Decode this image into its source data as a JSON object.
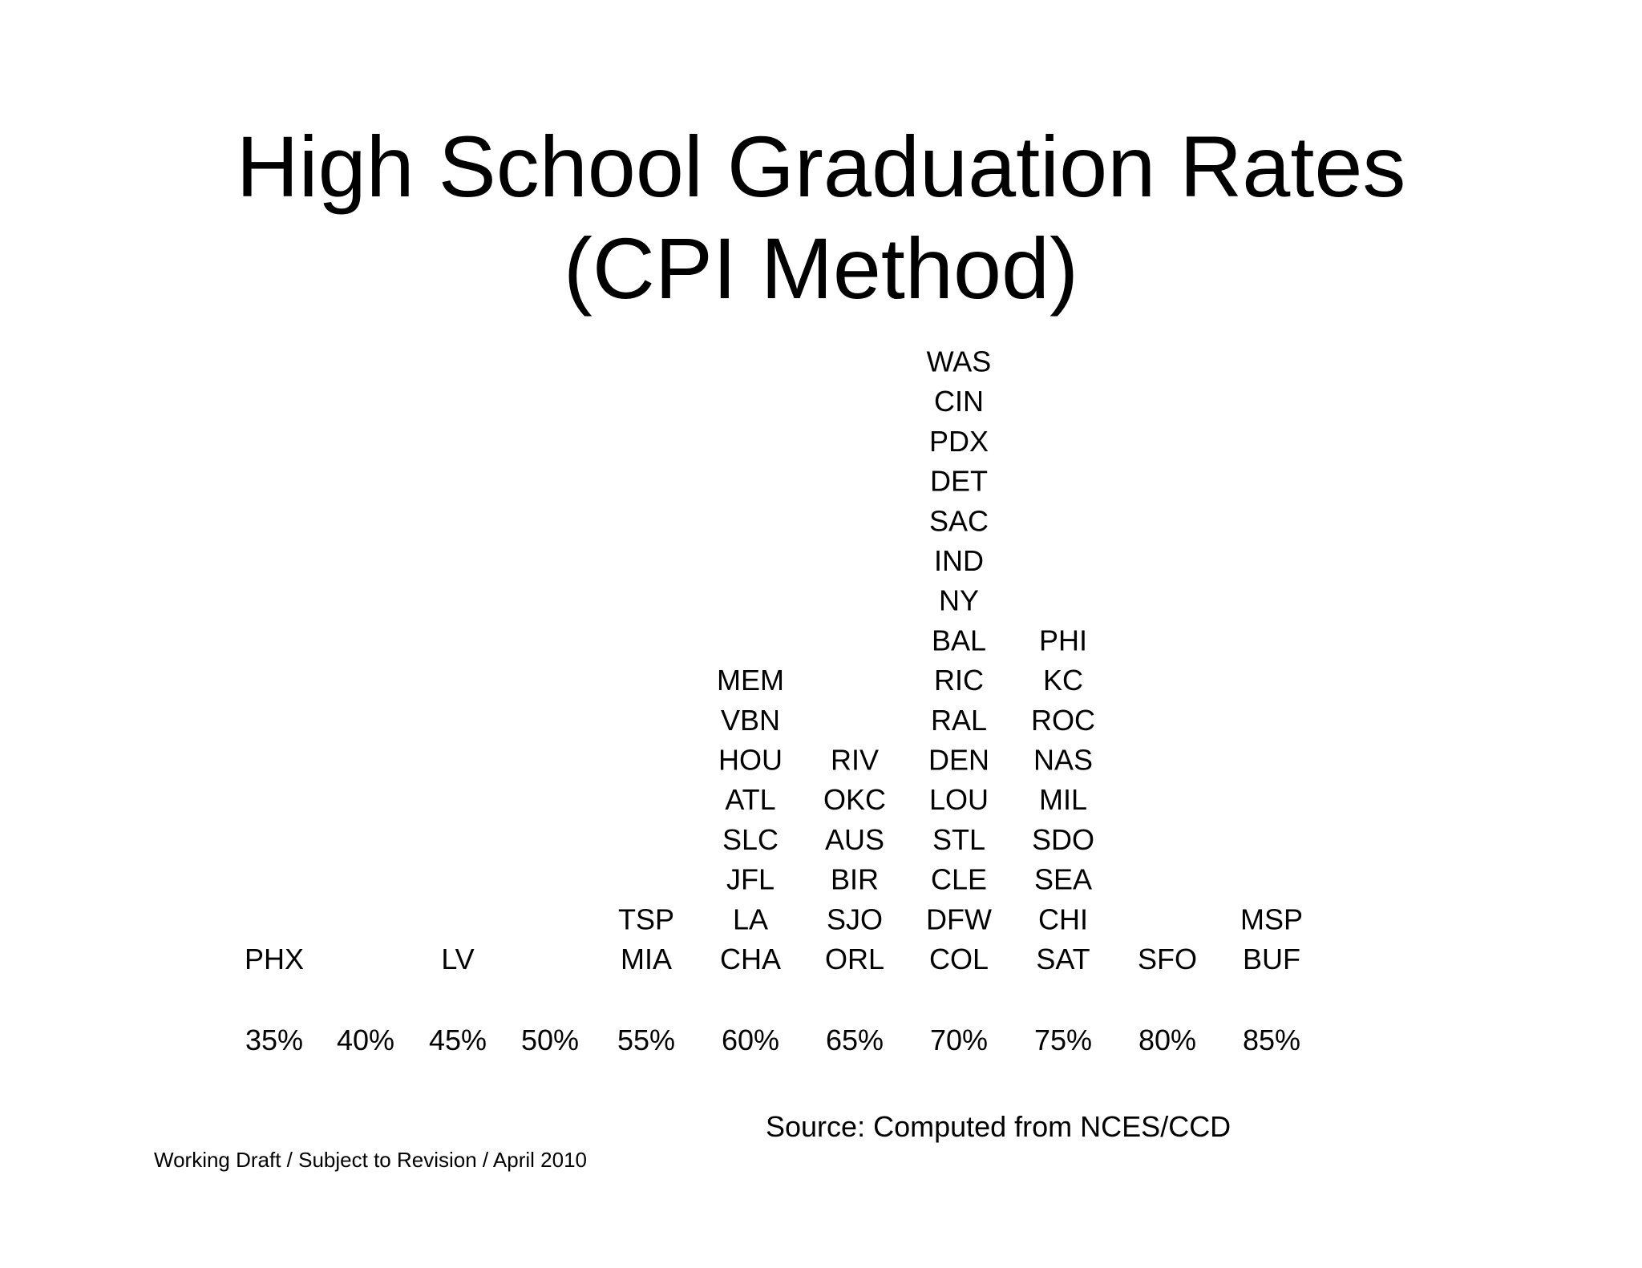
{
  "slide": {
    "title_line1": "High School Graduation Rates",
    "title_line2": "(CPI Method)",
    "source": "Source: Computed from NCES/CCD",
    "footer": "Working Draft / Subject to Revision / April 2010"
  },
  "chart_data": {
    "type": "dot-plot",
    "title": "High School Graduation Rates (CPI Method)",
    "xlabel": "",
    "ylabel": "",
    "x_tick_labels": [
      "35%",
      "40%",
      "45%",
      "50%",
      "55%",
      "60%",
      "65%",
      "70%",
      "75%",
      "80%",
      "85%"
    ],
    "columns": [
      {
        "x": "35%",
        "labels": [
          "PHX"
        ]
      },
      {
        "x": "40%",
        "labels": []
      },
      {
        "x": "45%",
        "labels": [
          "LV"
        ]
      },
      {
        "x": "50%",
        "labels": []
      },
      {
        "x": "55%",
        "labels": [
          "MIA",
          "TSP"
        ]
      },
      {
        "x": "60%",
        "labels": [
          "CHA",
          "LA",
          "JFL",
          "SLC",
          "ATL",
          "HOU",
          "VBN",
          "MEM"
        ]
      },
      {
        "x": "65%",
        "labels": [
          "ORL",
          "SJO",
          "BIR",
          "AUS",
          "OKC",
          "RIV"
        ]
      },
      {
        "x": "70%",
        "labels": [
          "COL",
          "DFW",
          "CLE",
          "STL",
          "LOU",
          "DEN",
          "RAL",
          "RIC",
          "BAL",
          "NY",
          "IND",
          "SAC",
          "DET",
          "PDX",
          "CIN",
          "WAS"
        ]
      },
      {
        "x": "75%",
        "labels": [
          "SAT",
          "CHI",
          "SEA",
          "SDO",
          "MIL",
          "NAS",
          "ROC",
          "KC",
          "PHI"
        ]
      },
      {
        "x": "80%",
        "labels": [
          "SFO"
        ]
      },
      {
        "x": "85%",
        "labels": [
          "BUF",
          "MSP"
        ]
      }
    ]
  }
}
